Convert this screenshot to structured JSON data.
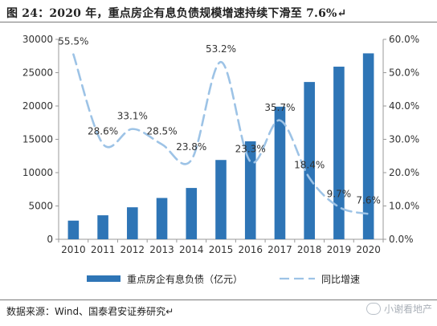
{
  "title": "图 24：2020 年，重点房企有息负债规模增速持续下滑至 7.6%↵",
  "source": "数据来源：Wind、国泰君安证券研究↵",
  "watermark": "小谢看地产",
  "colors": {
    "bar": "#2e75b6",
    "line": "#9dc3e6"
  },
  "chart_data": {
    "type": "bar+line",
    "categories": [
      "2010",
      "2011",
      "2012",
      "2013",
      "2014",
      "2015",
      "2016",
      "2017",
      "2018",
      "2019",
      "2020"
    ],
    "series": [
      {
        "name": "重点房企有息负债（亿元）",
        "type": "bar",
        "axis": "left",
        "values": [
          2800,
          3600,
          4800,
          6200,
          7700,
          11900,
          14700,
          19900,
          23600,
          25900,
          27900
        ]
      },
      {
        "name": "同比增速",
        "type": "line",
        "style": "dashed",
        "axis": "right",
        "values": [
          55.5,
          28.6,
          33.1,
          28.5,
          23.8,
          53.2,
          23.3,
          35.7,
          18.4,
          9.7,
          7.6
        ],
        "labels": [
          "55.5%",
          "28.6%",
          "33.1%",
          "28.5%",
          "23.8%",
          "53.2%",
          "23.3%",
          "35.7%",
          "18.4%",
          "9.7%",
          "7.6%"
        ]
      }
    ],
    "y_left": {
      "min": 0,
      "max": 30000,
      "ticks": [
        "0",
        "5000",
        "10000",
        "15000",
        "20000",
        "25000",
        "30000"
      ]
    },
    "y_right": {
      "min": 0,
      "max": 60,
      "ticks": [
        "0.0%",
        "10.0%",
        "20.0%",
        "30.0%",
        "40.0%",
        "50.0%",
        "60.0%"
      ]
    },
    "legend_position": "bottom",
    "grid": false
  }
}
